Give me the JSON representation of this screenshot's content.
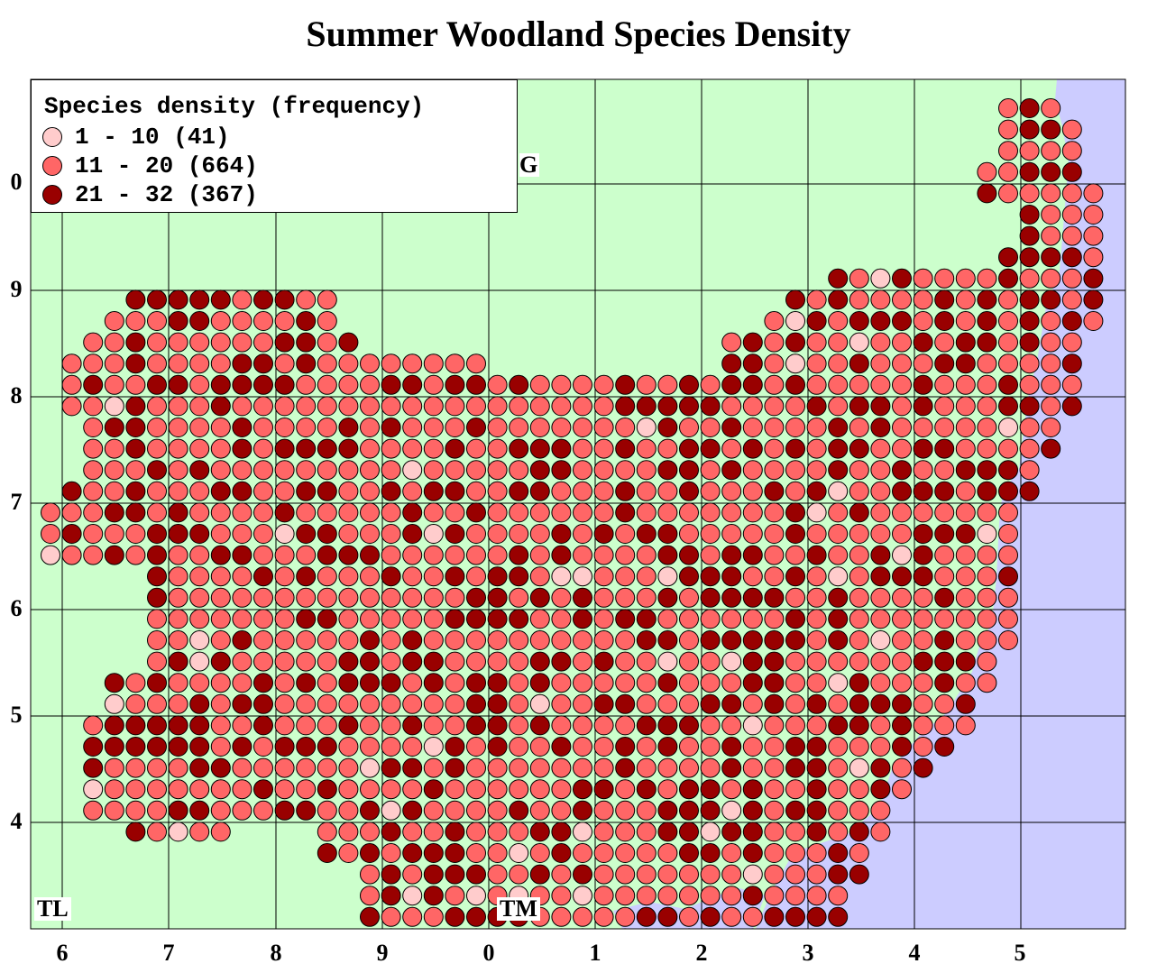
{
  "title": "Summer Woodland Species Density",
  "legend": {
    "title": "Species density (frequency)",
    "classes": [
      {
        "label": "1 - 10 (41)",
        "color": "#ffcccc"
      },
      {
        "label": "11 - 20 (664)",
        "color": "#ff6666"
      },
      {
        "label": "21 - 32 (367)",
        "color": "#990000"
      }
    ]
  },
  "x_tick_labels": [
    "6",
    "7",
    "8",
    "9",
    "0",
    "1",
    "2",
    "3",
    "4",
    "5"
  ],
  "y_tick_labels": [
    "0",
    "9",
    "8",
    "7",
    "6",
    "5",
    "4"
  ],
  "grid_square_codes": {
    "bottom_left": "TL",
    "bottom_middle": "TM",
    "top_middle_partial": "G"
  },
  "colors": {
    "land": "#ccffcc",
    "sea": "#ccccff",
    "grid_line": "#000000",
    "dot_outline": "#000000"
  }
}
